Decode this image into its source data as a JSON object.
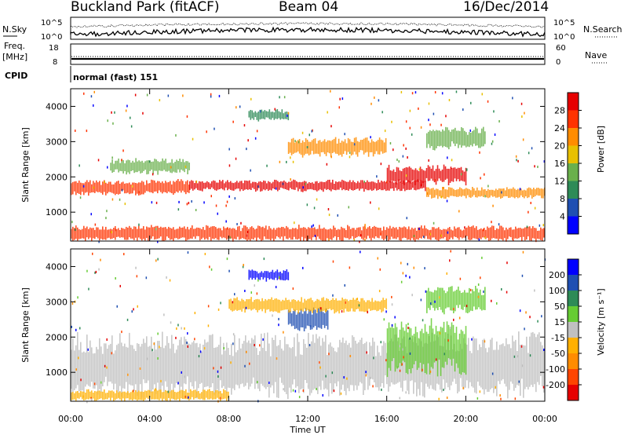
{
  "header": {
    "title": "Buckland Park (fitACF)",
    "beam": "Beam 04",
    "date": "16/Dec/2014"
  },
  "summary_panel": {
    "left_label": "N.Sky",
    "left_ticks": [
      "10^5",
      "10^0"
    ],
    "right_label": "N.Search",
    "right_ticks": [
      "10^5",
      "10^0"
    ]
  },
  "freq_panel": {
    "left_label": "Freq.",
    "left_unit": "[MHz]",
    "left_ticks": [
      "18",
      "8"
    ],
    "right_label": "Nave",
    "right_ticks": [
      "60",
      "0"
    ]
  },
  "cpid": {
    "label": "CPID",
    "value": "normal (fast) 151"
  },
  "colors": {
    "ground_scatter": "#c0c0c0",
    "power_scale": [
      "#0000ff",
      "#1f4fb2",
      "#2e8b57",
      "#6ab04c",
      "#e8c000",
      "#ff8c00",
      "#ff3300",
      "#e60000"
    ],
    "velocity_scale": [
      "#e60000",
      "#ff4500",
      "#ff8c00",
      "#ffb000",
      "#c0c0c0",
      "#66cc33",
      "#2e8b57",
      "#1f4fb2",
      "#0000ff"
    ]
  },
  "chart_data": [
    {
      "type": "heatmap",
      "panel": "power",
      "ylabel": "Slant Range [km]",
      "xlabel": "Time UT",
      "x_ticks": [
        "00:00",
        "04:00",
        "08:00",
        "12:00",
        "16:00",
        "20:00",
        "00:00"
      ],
      "x_range_hours": [
        0,
        24
      ],
      "y_ticks": [
        "1000",
        "2000",
        "3000",
        "4000"
      ],
      "y_range_km": [
        180,
        4500
      ],
      "colorbar_label": "Power [dB]",
      "colorbar_ticks": [
        "28",
        "24",
        "20",
        "16",
        "12",
        "8",
        "4"
      ],
      "colorbar_range": [
        0,
        32
      ],
      "bands": [
        {
          "t": [
            0,
            24
          ],
          "r": [
            200,
            600
          ],
          "level": 26
        },
        {
          "t": [
            0,
            6
          ],
          "r": [
            1500,
            1900
          ],
          "level": 24
        },
        {
          "t": [
            6,
            18
          ],
          "r": [
            1600,
            1900
          ],
          "level": 28
        },
        {
          "t": [
            11,
            16
          ],
          "r": [
            2600,
            3100
          ],
          "level": 22
        },
        {
          "t": [
            16,
            20
          ],
          "r": [
            1800,
            2300
          ],
          "level": 30
        },
        {
          "t": [
            18,
            24
          ],
          "r": [
            1400,
            1700
          ],
          "level": 22
        },
        {
          "t": [
            18,
            21
          ],
          "r": [
            2800,
            3400
          ],
          "level": 12
        },
        {
          "t": [
            9,
            11
          ],
          "r": [
            3600,
            3900
          ],
          "level": 10
        },
        {
          "t": [
            2,
            6
          ],
          "r": [
            2100,
            2500
          ],
          "level": 14
        }
      ]
    },
    {
      "type": "heatmap",
      "panel": "velocity",
      "ylabel": "Slant Range [km]",
      "xlabel": "Time UT",
      "x_ticks": [
        "00:00",
        "04:00",
        "08:00",
        "12:00",
        "16:00",
        "20:00",
        "00:00"
      ],
      "x_range_hours": [
        0,
        24
      ],
      "y_ticks": [
        "1000",
        "2000",
        "3000",
        "4000"
      ],
      "y_range_km": [
        180,
        4500
      ],
      "colorbar_label": "Velocity [m s⁻¹]",
      "colorbar_ticks": [
        "200",
        "100",
        "50",
        "15",
        "-15",
        "-50",
        "-100",
        "-200"
      ],
      "colorbar_range": [
        -250,
        250
      ],
      "bands": [
        {
          "t": [
            0,
            24
          ],
          "r": [
            400,
            2000
          ],
          "level": 0
        },
        {
          "t": [
            9,
            11
          ],
          "r": [
            3600,
            3900
          ],
          "level": 200
        },
        {
          "t": [
            11,
            13
          ],
          "r": [
            2200,
            2800
          ],
          "level": 150
        },
        {
          "t": [
            8,
            16
          ],
          "r": [
            2700,
            3100
          ],
          "level": -60
        },
        {
          "t": [
            16,
            20
          ],
          "r": [
            1000,
            2400
          ],
          "level": 40
        },
        {
          "t": [
            18,
            21
          ],
          "r": [
            2700,
            3400
          ],
          "level": 60
        },
        {
          "t": [
            0,
            8
          ],
          "r": [
            200,
            500
          ],
          "level": -30
        }
      ]
    }
  ]
}
